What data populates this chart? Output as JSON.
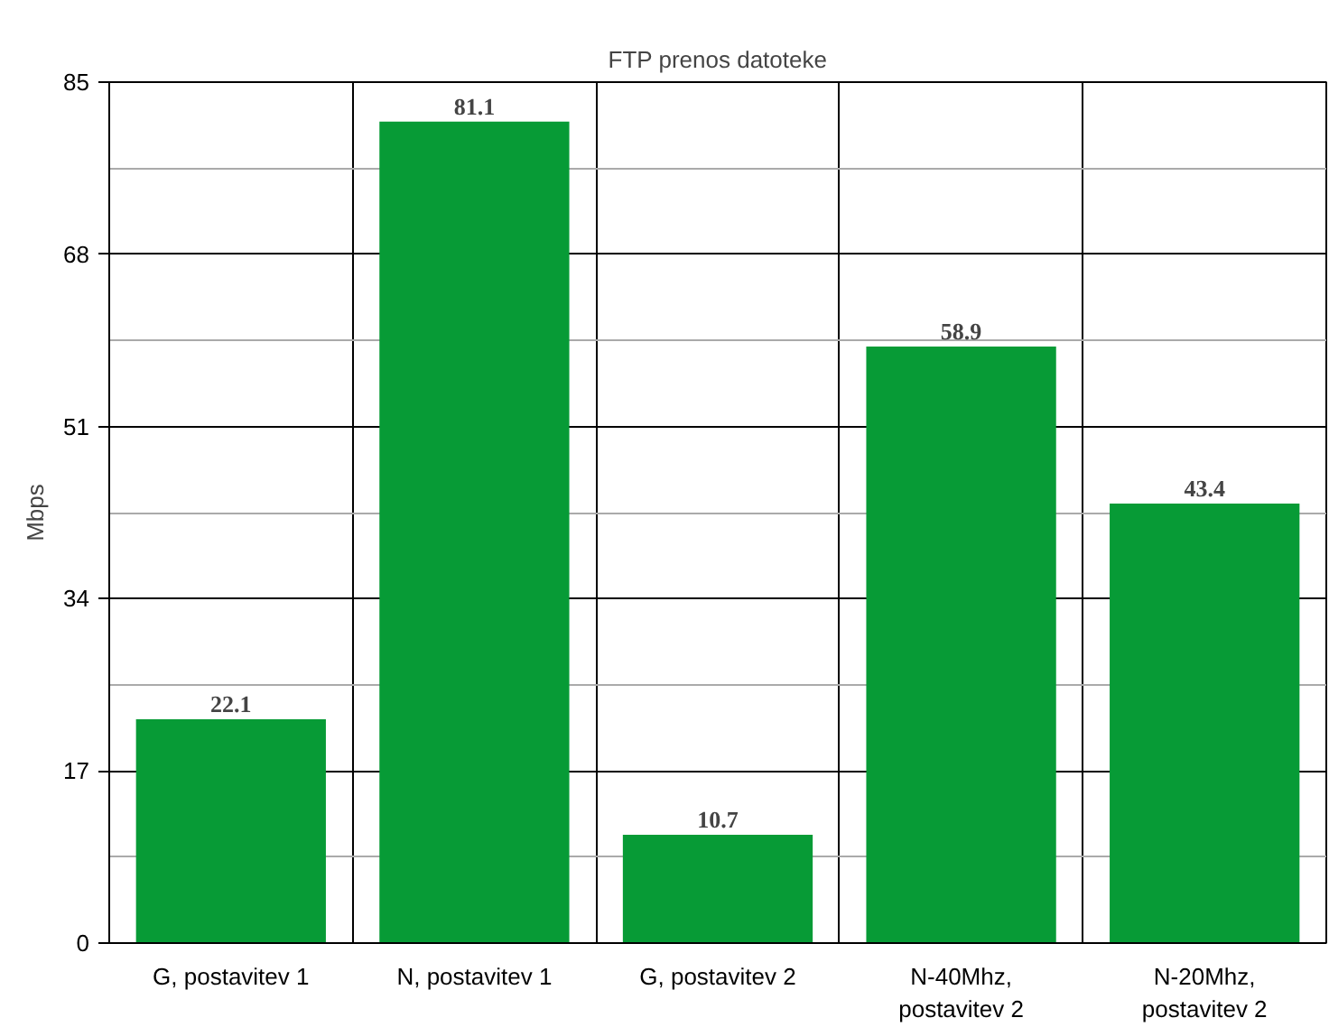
{
  "chart_data": {
    "type": "bar",
    "title": "FTP prenos datoteke",
    "ylabel": "Mbps",
    "categories": [
      "G, postavitev 1",
      "N, postavitev 1",
      "G, postavitev 2",
      "N-40Mhz,\npostavitev 2",
      "N-20Mhz,\npostavitev 2"
    ],
    "values": [
      22.1,
      81.1,
      10.7,
      58.9,
      43.4
    ],
    "color": "#079b36",
    "ylim": [
      0,
      85
    ],
    "yticks": [
      0,
      17,
      34,
      51,
      68,
      85
    ],
    "grid": true,
    "data_labels": true
  }
}
